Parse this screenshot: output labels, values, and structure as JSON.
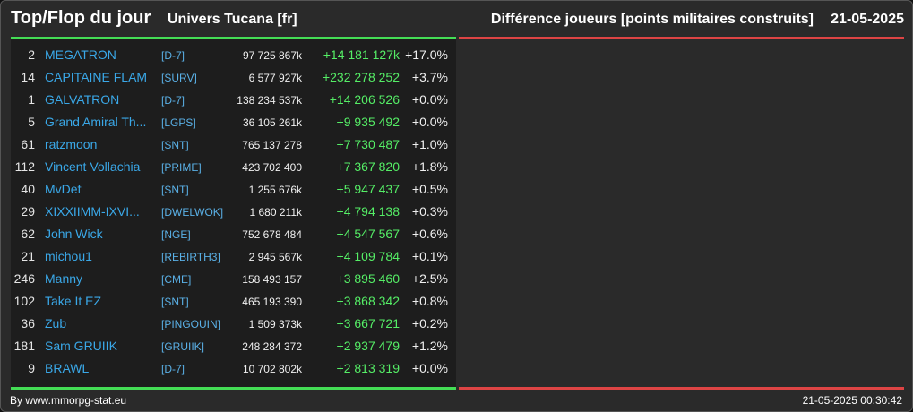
{
  "header": {
    "title": "Top/Flop du jour",
    "universe": "Univers Tucana [fr]",
    "subtitle": "Différence joueurs [points militaires construits]",
    "date": "21-05-2025"
  },
  "colors": {
    "top_accent": "#44dd55",
    "flop_accent": "#dd4444",
    "player_link": "#3aa8e8",
    "gain": "#55ee66"
  },
  "top": [
    {
      "rank": "2",
      "name": "MEGATRON",
      "alliance": "[D-7]",
      "points": "97 725 867k",
      "gain": "+14 181 127k",
      "pct": "+17.0%"
    },
    {
      "rank": "14",
      "name": "CAPITAINE FLAM",
      "alliance": "[SURV]",
      "points": "6 577 927k",
      "gain": "+232 278 252",
      "pct": "+3.7%"
    },
    {
      "rank": "1",
      "name": "GALVATRON",
      "alliance": "[D-7]",
      "points": "138 234 537k",
      "gain": "+14 206 526",
      "pct": "+0.0%"
    },
    {
      "rank": "5",
      "name": "Grand Amiral Th...",
      "alliance": "[LGPS]",
      "points": "36 105 261k",
      "gain": "+9 935 492",
      "pct": "+0.0%"
    },
    {
      "rank": "61",
      "name": "ratzmoon",
      "alliance": "[SNT]",
      "points": "765 137 278",
      "gain": "+7 730 487",
      "pct": "+1.0%"
    },
    {
      "rank": "112",
      "name": "Vincent Vollachia",
      "alliance": "[PRIME]",
      "points": "423 702 400",
      "gain": "+7 367 820",
      "pct": "+1.8%"
    },
    {
      "rank": "40",
      "name": "MvDef",
      "alliance": "[SNT]",
      "points": "1 255 676k",
      "gain": "+5 947 437",
      "pct": "+0.5%"
    },
    {
      "rank": "29",
      "name": "XIXXIIMM-IXVI...",
      "alliance": "[DWELWOK]",
      "points": "1 680 211k",
      "gain": "+4 794 138",
      "pct": "+0.3%"
    },
    {
      "rank": "62",
      "name": "John Wick",
      "alliance": "[NGE]",
      "points": "752 678 484",
      "gain": "+4 547 567",
      "pct": "+0.6%"
    },
    {
      "rank": "21",
      "name": "michou1",
      "alliance": "[REBIRTH3]",
      "points": "2 945 567k",
      "gain": "+4 109 784",
      "pct": "+0.1%"
    },
    {
      "rank": "246",
      "name": "Manny",
      "alliance": "[CME]",
      "points": "158 493 157",
      "gain": "+3 895 460",
      "pct": "+2.5%"
    },
    {
      "rank": "102",
      "name": "Take It EZ",
      "alliance": "[SNT]",
      "points": "465 193 390",
      "gain": "+3 868 342",
      "pct": "+0.8%"
    },
    {
      "rank": "36",
      "name": "Zub",
      "alliance": "[PINGOUIN]",
      "points": "1 509 373k",
      "gain": "+3 667 721",
      "pct": "+0.2%"
    },
    {
      "rank": "181",
      "name": "Sam GRUIIK",
      "alliance": "[GRUIIK]",
      "points": "248 284 372",
      "gain": "+2 937 479",
      "pct": "+1.2%"
    },
    {
      "rank": "9",
      "name": "BRAWL",
      "alliance": "[D-7]",
      "points": "10 702 802k",
      "gain": "+2 813 319",
      "pct": "+0.0%"
    }
  ],
  "footer": {
    "credit": "By www.mmorpg-stat.eu",
    "timestamp": "21-05-2025 00:30:42"
  }
}
